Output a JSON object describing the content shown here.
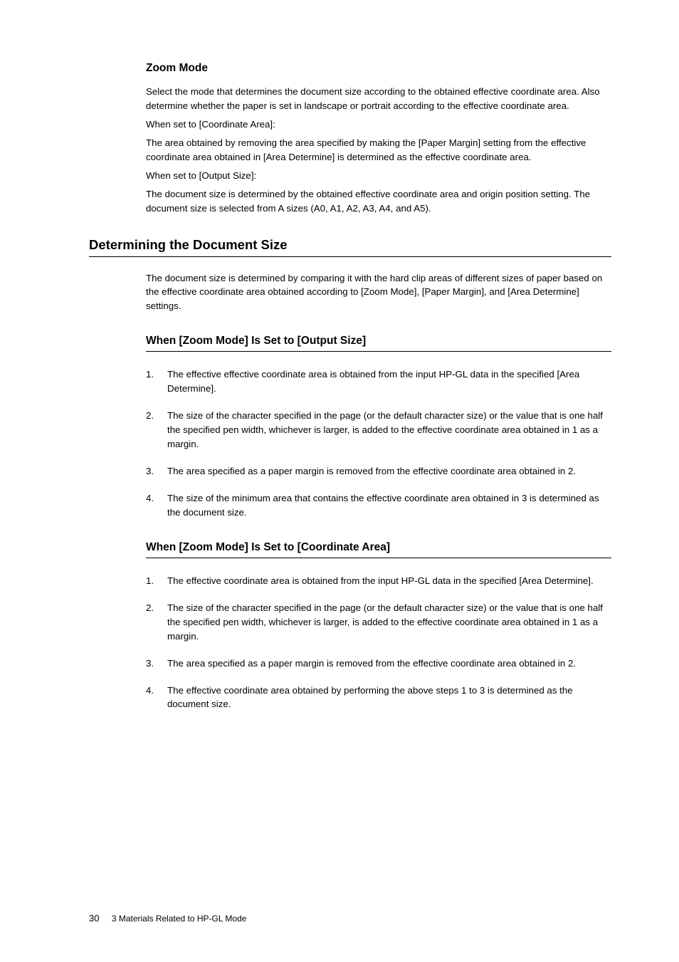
{
  "section_zoom": {
    "heading": "Zoom Mode",
    "p1": "Select the mode that determines the document size according to the obtained effective coordinate area. Also determine whether the paper is set in landscape or portrait according to the effective coordinate area.",
    "p2": "When set to [Coordinate Area]:",
    "p3": "The area obtained by removing the area specified by making the [Paper Margin] setting from the effective coordinate area obtained in [Area Determine] is determined as the effective coordinate area.",
    "p4": "When set to [Output Size]:",
    "p5": "The document size is determined by the obtained effective coordinate area and origin position setting. The document size is selected from A sizes (A0, A1, A2, A3, A4, and A5)."
  },
  "section_det": {
    "heading": "Determining the Document Size",
    "p1": "The document size is determined by comparing it with the hard clip areas of different sizes of paper based on the effective coordinate area obtained according to [Zoom Mode], [Paper Margin], and [Area Determine] settings."
  },
  "section_out": {
    "heading": "When [Zoom Mode] Is Set to [Output Size]",
    "items": [
      "The effective effective coordinate area is obtained from the input HP-GL data in the specified [Area Determine].",
      "The size of the character specified in the page (or the default character size) or the value that is one half the specified pen width, whichever is larger, is added to the effective coordinate area obtained in 1 as a margin.",
      "The area specified as a paper margin is removed from the effective coordinate area obtained in 2.",
      "The size of the minimum area that contains the effective coordinate area obtained in 3 is determined as the document size."
    ]
  },
  "section_coord": {
    "heading": "When [Zoom Mode] Is Set to [Coordinate Area]",
    "items": [
      "The effective coordinate area is obtained from the input HP-GL data in the specified [Area Determine].",
      "The size of the character specified in the page (or the default character size) or the value that is one half the specified pen width, whichever is larger, is added to the effective coordinate area obtained in 1 as a margin.",
      "The area specified as a paper margin is removed from the effective coordinate area obtained in 2.",
      "The effective coordinate area obtained by performing the above steps 1 to 3 is determined as the document size."
    ]
  },
  "footer": {
    "page": "30",
    "chapter": "3 Materials Related to HP-GL Mode"
  },
  "numbers": {
    "n1": "1.",
    "n2": "2.",
    "n3": "3.",
    "n4": "4."
  }
}
